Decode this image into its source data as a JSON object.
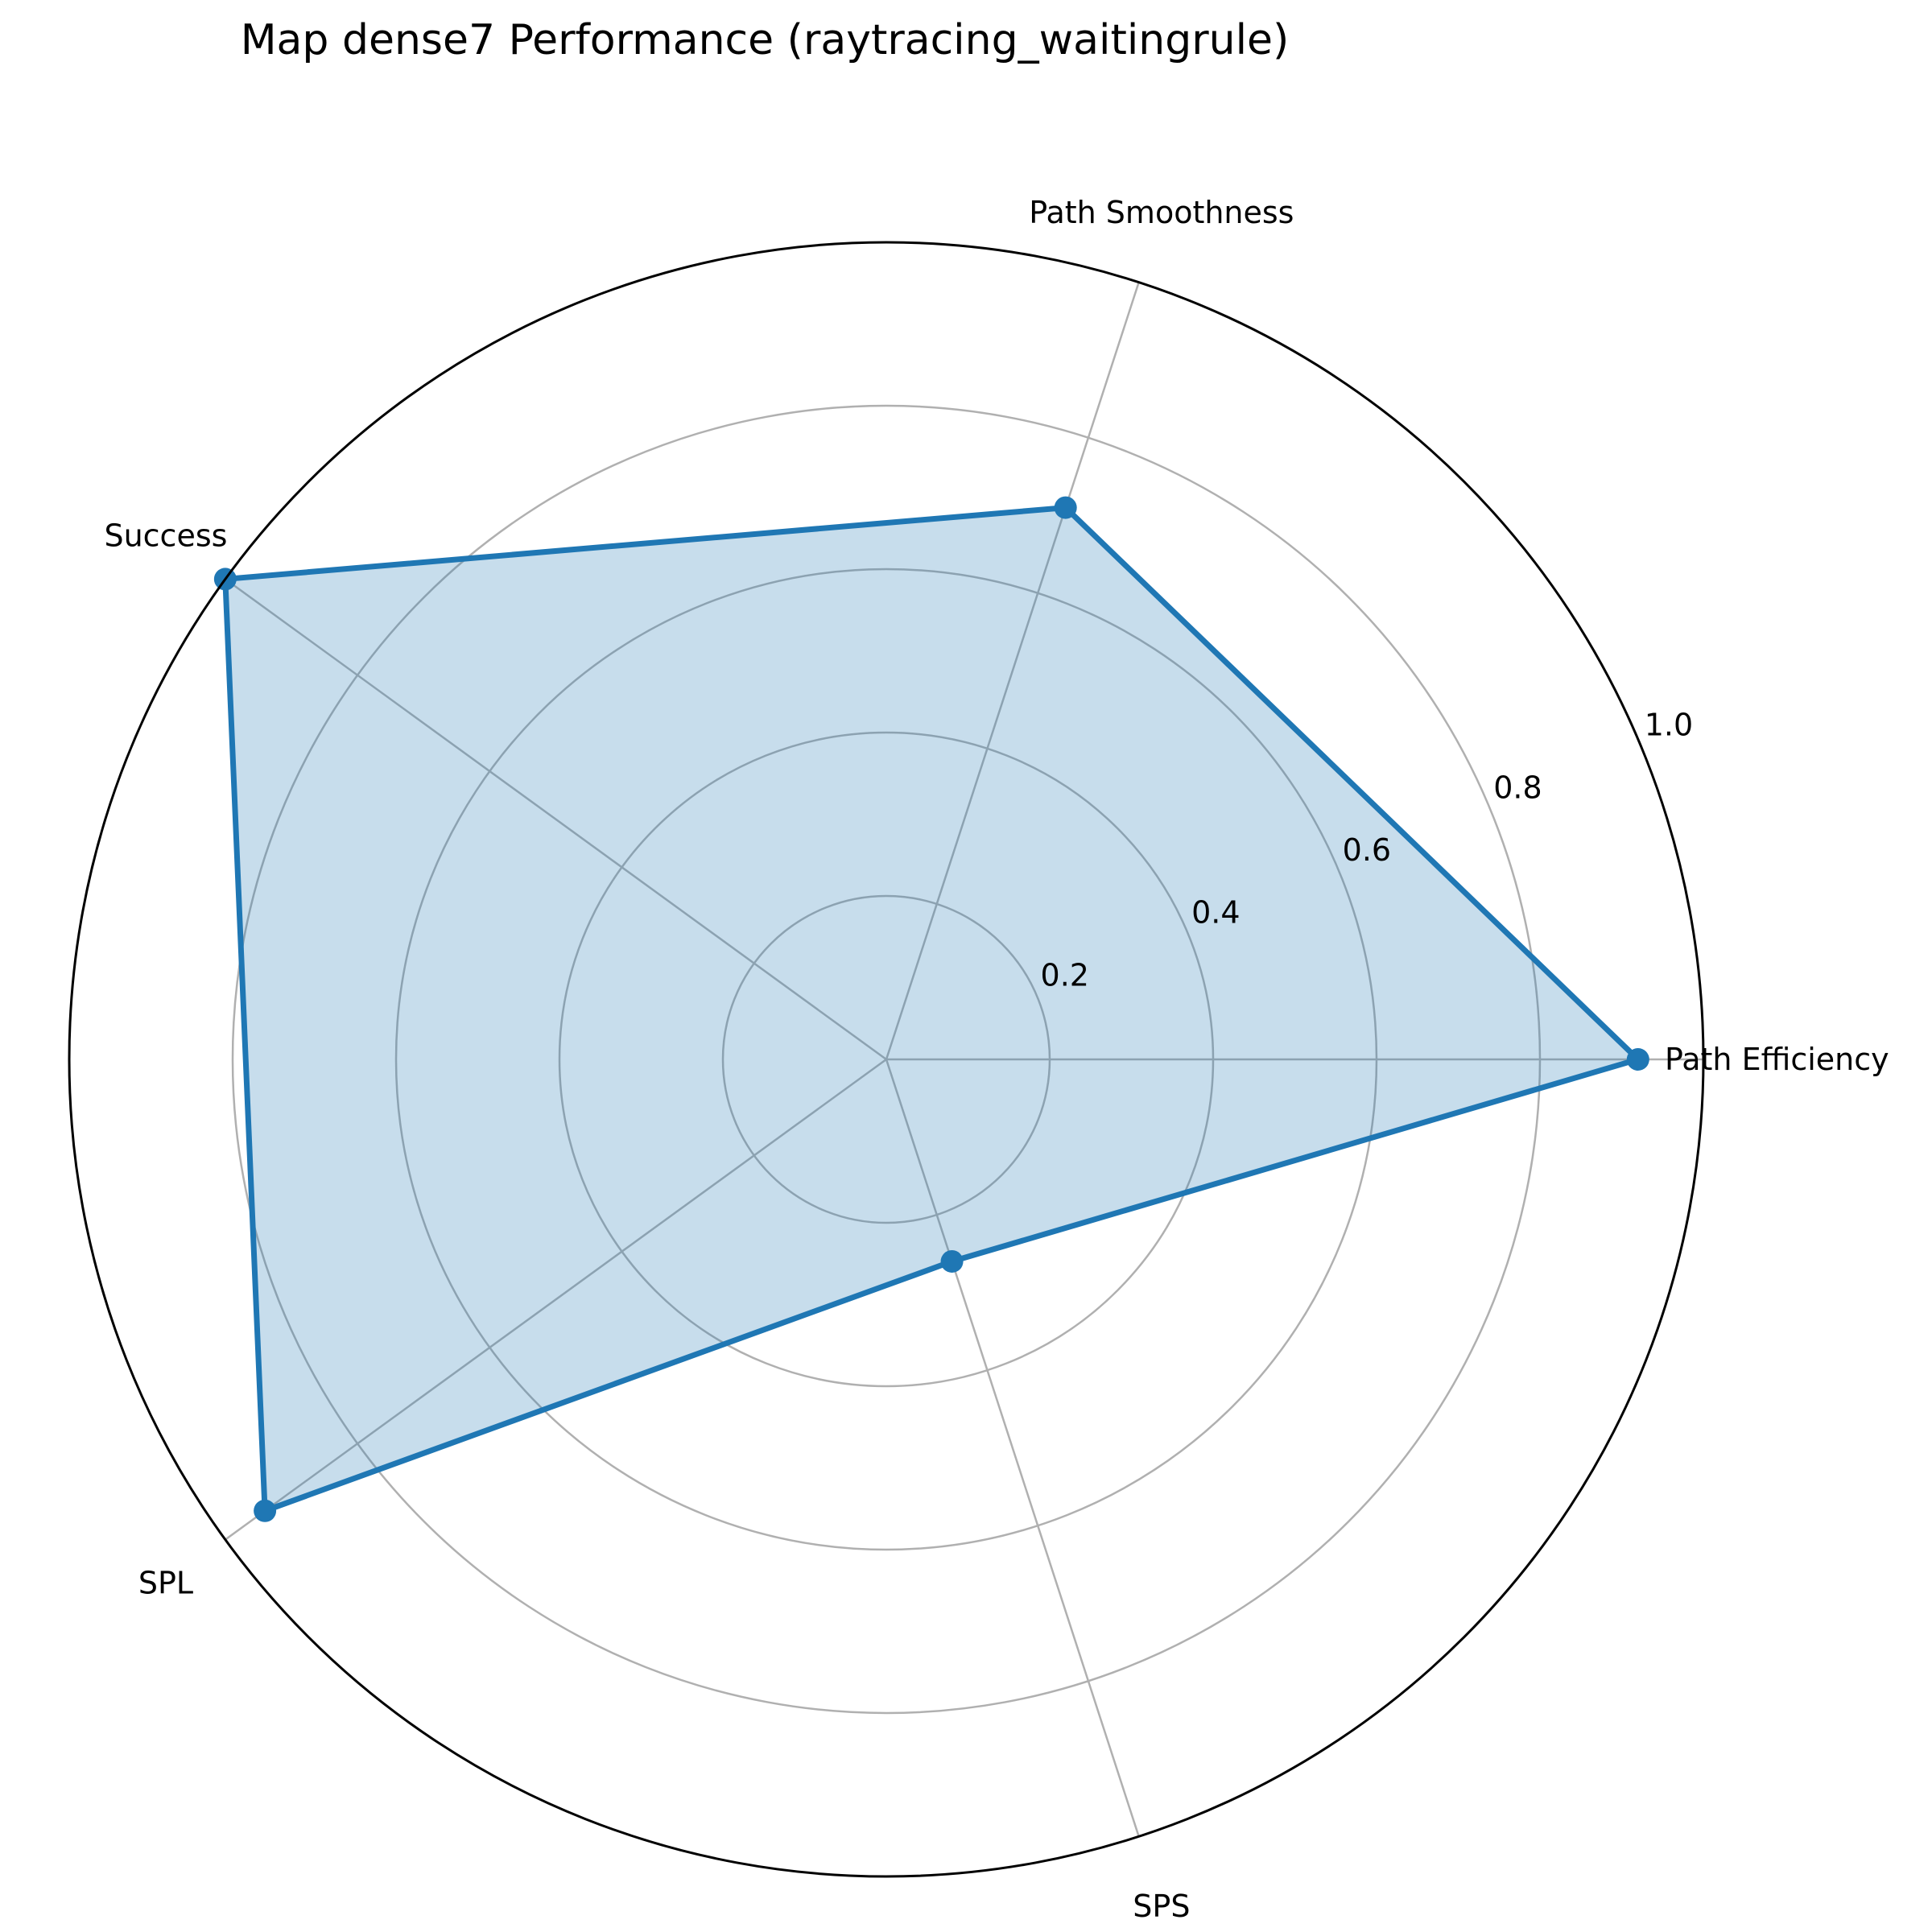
{
  "chart_data": {
    "type": "radar",
    "title": "Map dense7 Performance (raytracing_waitingrule)",
    "categories": [
      "Path Efficiency",
      "Path Smoothness",
      "Success",
      "SPL",
      "SPS"
    ],
    "series": [
      {
        "values": [
          0.92,
          0.71,
          1.0,
          0.94,
          0.26
        ]
      }
    ],
    "rlim": [
      0,
      1.0
    ],
    "radial_ticks": [
      0.2,
      0.4,
      0.6,
      0.8,
      1.0
    ],
    "radial_tick_labels": [
      "0.2",
      "0.4",
      "0.6",
      "0.8",
      "1.0"
    ],
    "grid": true,
    "colors": {
      "line": "#1f77b4",
      "fill": "#1f77b4",
      "grid": "#b0b0b0",
      "frame": "#000000"
    }
  }
}
